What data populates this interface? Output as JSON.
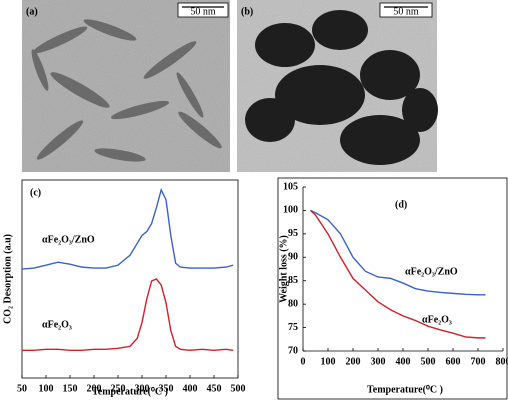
{
  "panels": [
    {
      "label": "(a)",
      "scale_bar": "50 nm"
    },
    {
      "label": "(b)",
      "scale_bar": "50 nm"
    }
  ],
  "chart_data": [
    {
      "type": "line",
      "panel": "(c)",
      "ylabel": "CO₂ Desorption (a.u)",
      "xlabel": "Temperature(⁰C )",
      "x": [
        50,
        75,
        100,
        125,
        150,
        175,
        200,
        225,
        250,
        275,
        290,
        300,
        310,
        320,
        330,
        340,
        350,
        360,
        370,
        380,
        400,
        425,
        450,
        475,
        490
      ],
      "series": [
        {
          "name": "αFe₂O₃/ZnO",
          "color": "#3a62c4",
          "values": [
            55,
            55.5,
            57,
            58.5,
            57.5,
            56,
            55.5,
            55.5,
            57,
            62,
            68,
            72,
            74,
            78,
            86,
            95,
            90,
            72,
            58,
            56,
            55.5,
            55.5,
            55.5,
            56,
            57
          ]
        },
        {
          "name": "αFe₂O₃",
          "color": "#d0202a",
          "values": [
            14,
            14,
            14.5,
            14.5,
            14,
            14,
            14.5,
            14.5,
            15,
            16,
            20,
            28,
            40,
            49,
            50,
            47,
            38,
            24,
            16,
            14.5,
            14,
            14.5,
            14,
            14.5,
            14
          ]
        }
      ],
      "xlim": [
        50,
        500
      ],
      "xticks": [
        50,
        100,
        150,
        200,
        250,
        300,
        350,
        400,
        450,
        500
      ],
      "ylim": [
        0,
        100
      ]
    },
    {
      "type": "line",
      "panel": "(d)",
      "ylabel": "Weight  loss (%)",
      "xlabel": "Temperature(⁰C )",
      "x": [
        30,
        50,
        100,
        150,
        200,
        250,
        300,
        350,
        400,
        450,
        500,
        550,
        600,
        650,
        700,
        730
      ],
      "series": [
        {
          "name": "αFe₂O₃/ZnO",
          "color": "#3a62c4",
          "values": [
            100,
            99.5,
            98,
            95,
            90,
            87,
            85.8,
            85.5,
            84.5,
            83.3,
            82.8,
            82.5,
            82.3,
            82.1,
            82,
            82
          ]
        },
        {
          "name": "αFe₂O₃",
          "color": "#d0202a",
          "values": [
            100,
            99,
            95,
            90,
            85.5,
            83,
            80.5,
            78.8,
            77.5,
            76.5,
            75.3,
            74.5,
            73.8,
            73,
            72.8,
            72.8
          ]
        }
      ],
      "xlim": [
        0,
        800
      ],
      "xticks": [
        0,
        100,
        200,
        300,
        400,
        500,
        600,
        700,
        800
      ],
      "ylim": [
        70,
        105
      ],
      "yticks": [
        70,
        75,
        80,
        85,
        90,
        95,
        100,
        105
      ]
    }
  ]
}
